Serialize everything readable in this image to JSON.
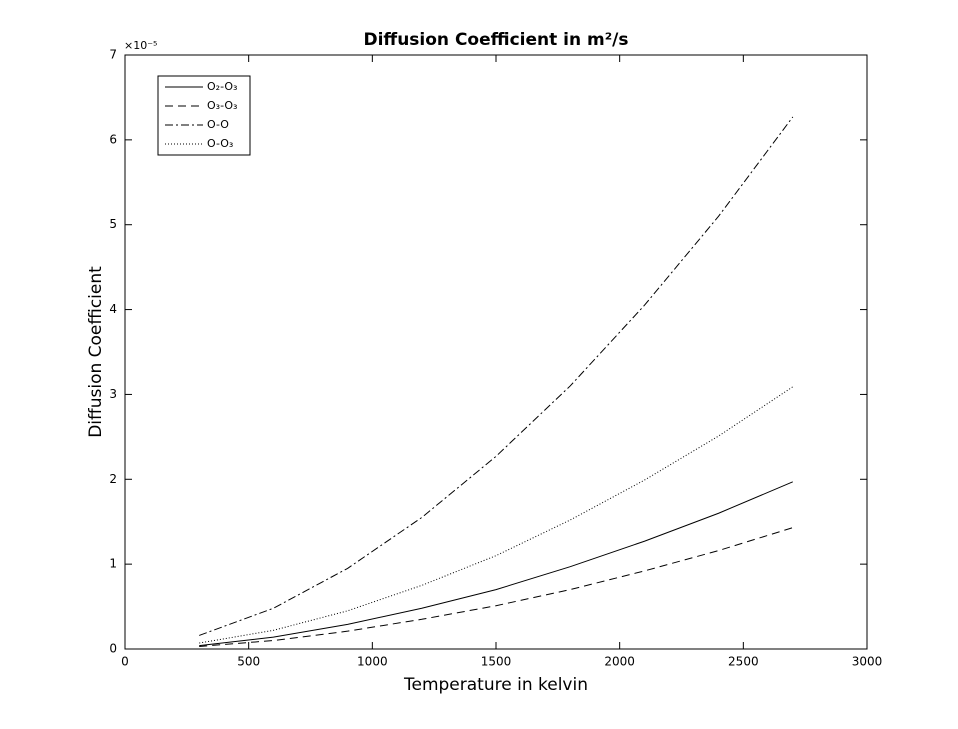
{
  "chart_data": {
    "type": "line",
    "title": "Diffusion Coefficient in m²/s",
    "x_label": "Temperature in kelvin",
    "y_label": "Diffusion Coefficient",
    "y_multiplier_label": "×10⁻⁵",
    "x": [
      300,
      600,
      900,
      1200,
      1500,
      1800,
      2100,
      2400,
      2700
    ],
    "series": [
      {
        "name": "O₂-O₃",
        "color": "#000000",
        "dash": "solid",
        "values": [
          0.04,
          0.14,
          0.29,
          0.48,
          0.7,
          0.97,
          1.27,
          1.6,
          1.97
        ]
      },
      {
        "name": "O₃-O₃",
        "color": "#000000",
        "dash": "dashed",
        "values": [
          0.03,
          0.1,
          0.21,
          0.35,
          0.51,
          0.7,
          0.92,
          1.16,
          1.43
        ]
      },
      {
        "name": "O-O",
        "color": "#000000",
        "dash": "dashdot",
        "values": [
          0.16,
          0.48,
          0.95,
          1.55,
          2.27,
          3.1,
          4.05,
          5.1,
          6.27
        ]
      },
      {
        "name": "O-O₃",
        "color": "#000000",
        "dash": "dotted",
        "values": [
          0.07,
          0.22,
          0.45,
          0.75,
          1.1,
          1.52,
          1.99,
          2.51,
          3.09
        ]
      }
    ],
    "xlim": [
      0,
      3000
    ],
    "xticks": [
      0,
      500,
      1000,
      1500,
      2000,
      2500,
      3000
    ],
    "ylim": [
      0,
      7
    ],
    "yticks": [
      0,
      1,
      2,
      3,
      4,
      5,
      6,
      7
    ],
    "grid": false,
    "legend": "upper-left"
  }
}
